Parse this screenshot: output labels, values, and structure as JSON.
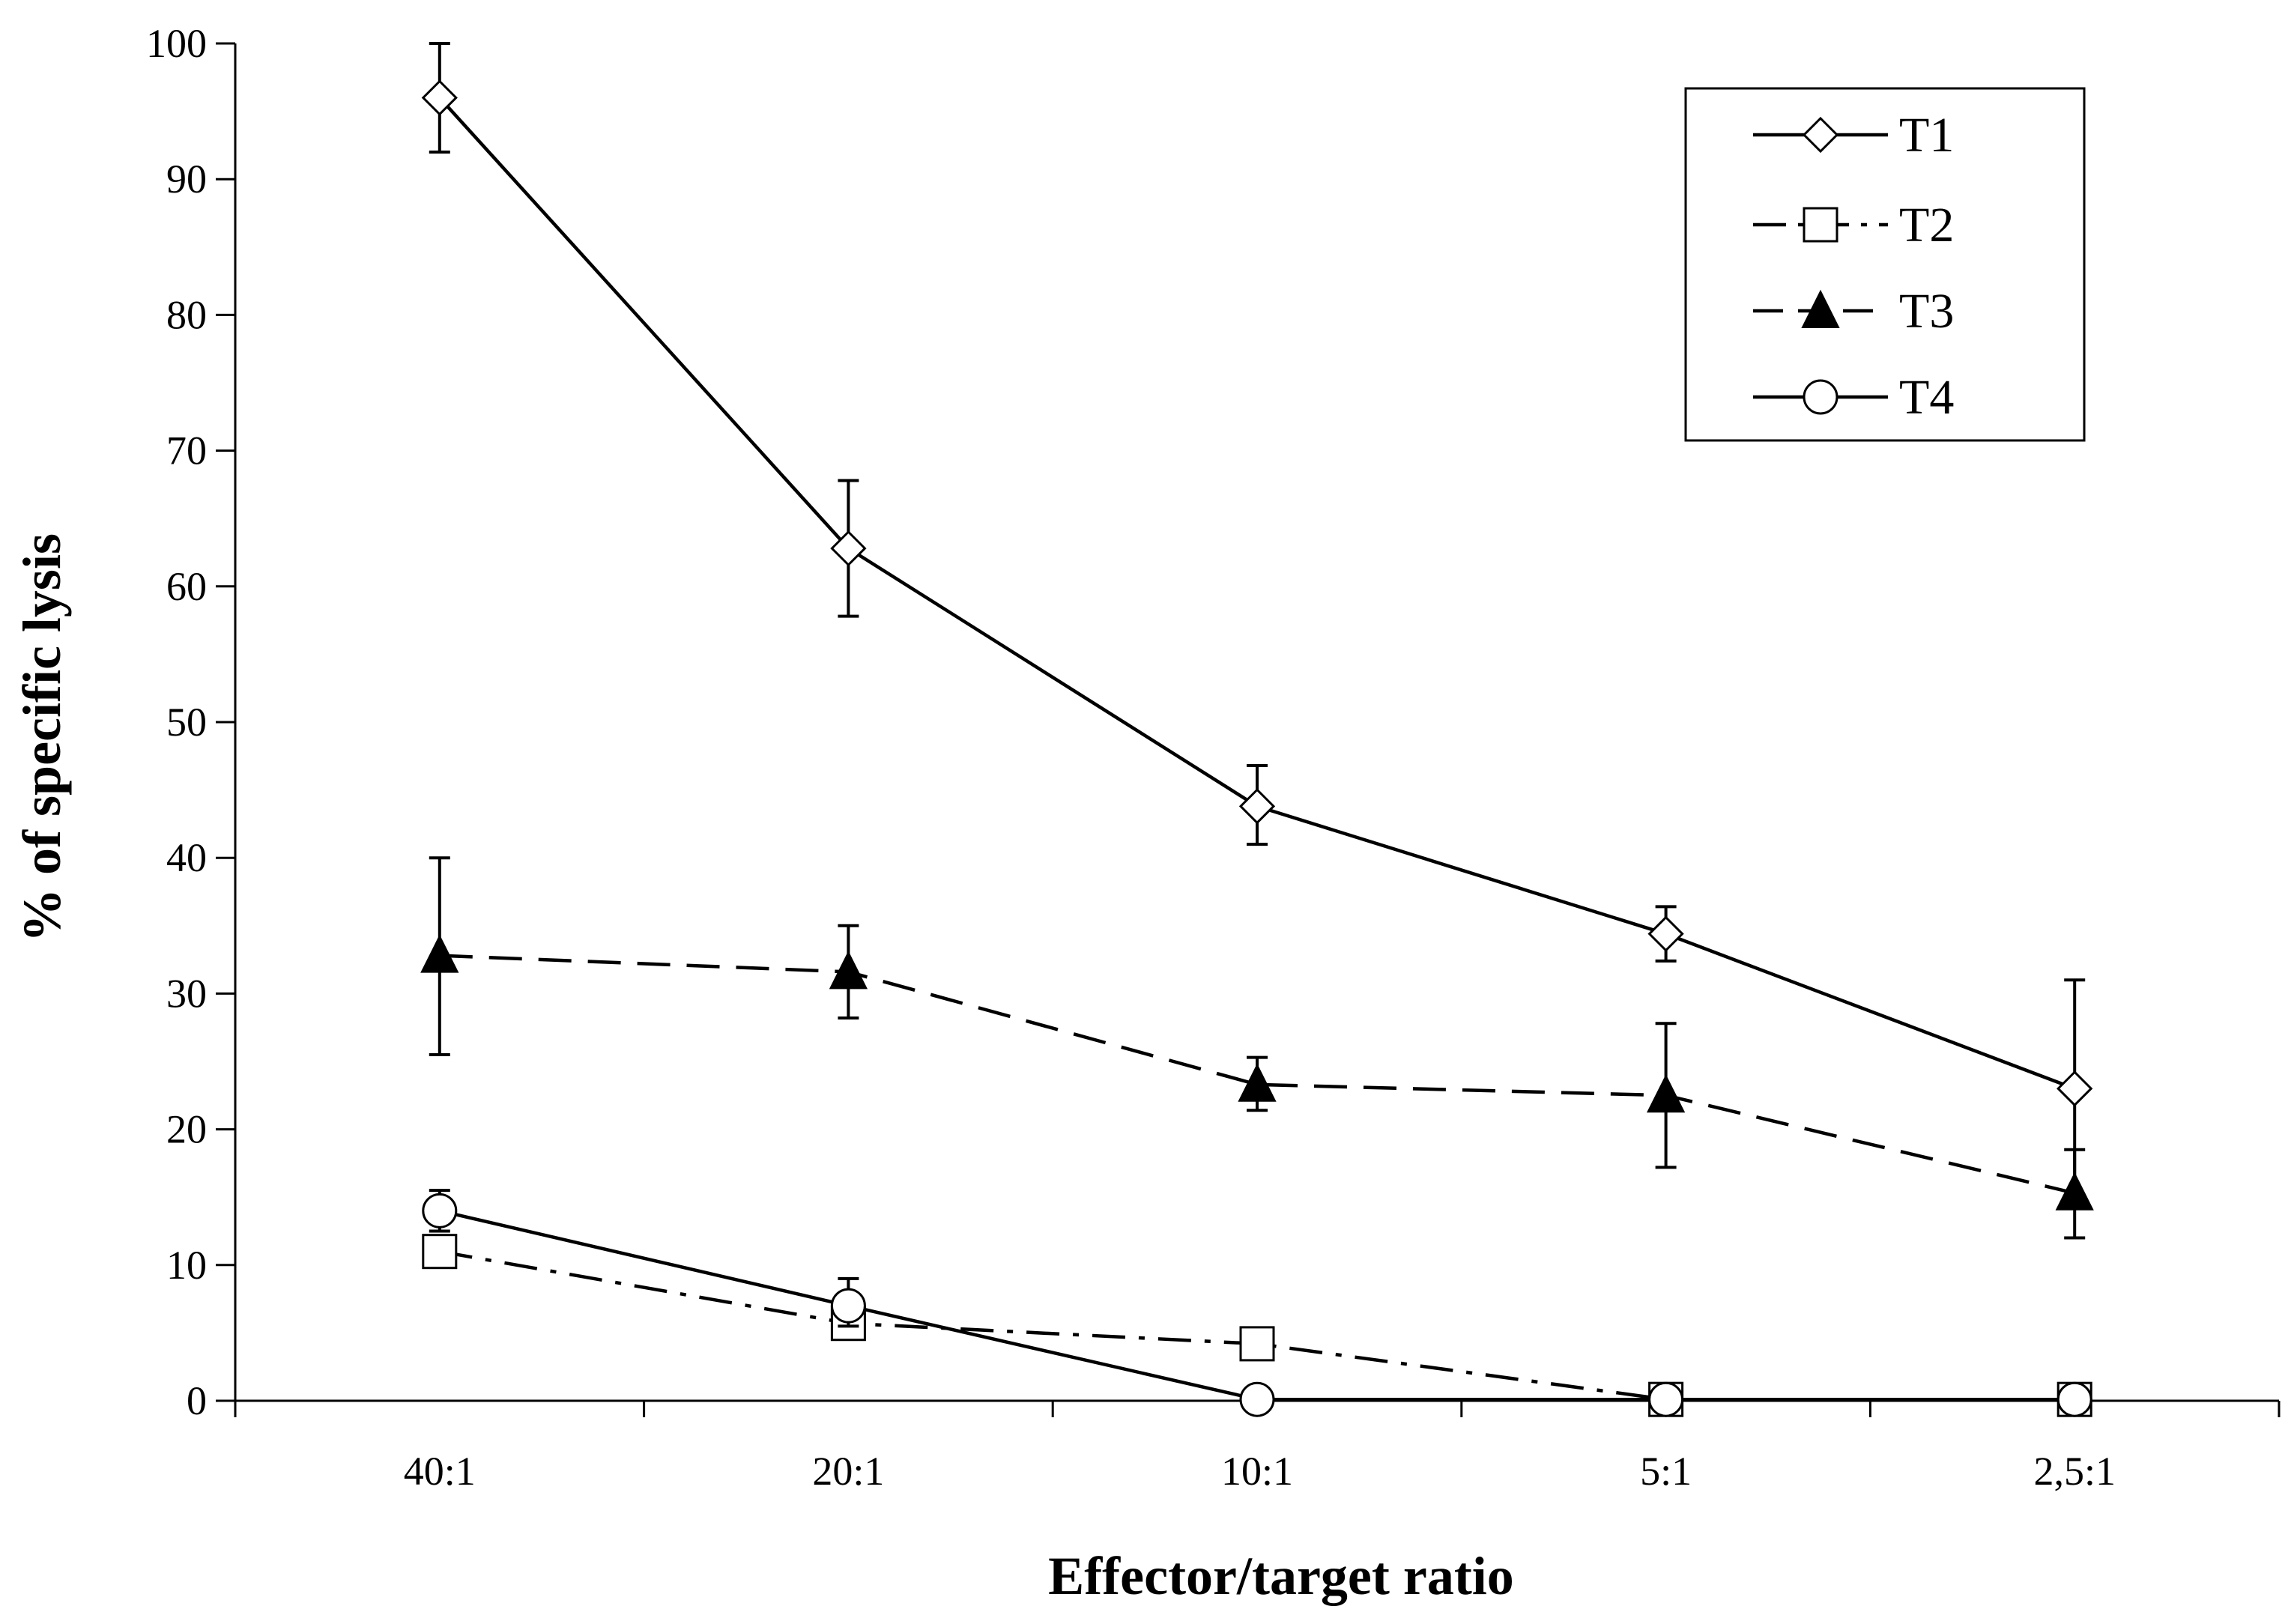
{
  "chart_data": {
    "type": "line",
    "title": "",
    "xlabel": "Effector/target ratio",
    "ylabel": "% of specific lysis",
    "categories": [
      "40:1",
      "20:1",
      "10:1",
      "5:1",
      "2,5:1"
    ],
    "ylim": [
      0,
      100
    ],
    "yticks": [
      0,
      10,
      20,
      30,
      40,
      50,
      60,
      70,
      80,
      90,
      100
    ],
    "ytick_labels": [
      "0",
      "10",
      "20",
      "30",
      "40",
      "50",
      "60",
      "70",
      "80",
      "90",
      "100"
    ],
    "grid": false,
    "legend_position": "top-right",
    "series": [
      {
        "name": "T1",
        "values": [
          96,
          62.8,
          43.8,
          34.4,
          23
        ],
        "err_low": [
          92,
          57.8,
          41,
          32.4,
          15
        ],
        "err_high": [
          100,
          67.8,
          46.8,
          36.4,
          31
        ],
        "marker": "diamond-open",
        "dash": "solid",
        "color": "#000000"
      },
      {
        "name": "T2",
        "values": [
          11,
          5.7,
          4.2,
          0.1,
          0.1
        ],
        "err_low": null,
        "err_high": null,
        "marker": "square-open",
        "dash": "dashdot",
        "color": "#000000"
      },
      {
        "name": "T3",
        "values": [
          32.8,
          31.6,
          23.3,
          22.5,
          15.3
        ],
        "err_low": [
          25.5,
          28.2,
          21.4,
          17.2,
          12
        ],
        "err_high": [
          40,
          35,
          25.3,
          27.8,
          18.5
        ],
        "marker": "triangle-filled",
        "dash": "dashed",
        "color": "#000000"
      },
      {
        "name": "T4",
        "values": [
          14,
          7,
          0.1,
          0.1,
          0.1
        ],
        "err_low": [
          12.5,
          5.5,
          null,
          null,
          null
        ],
        "err_high": [
          15.5,
          9,
          null,
          null,
          null
        ],
        "marker": "circle-open",
        "dash": "solid",
        "color": "#000000"
      }
    ]
  }
}
